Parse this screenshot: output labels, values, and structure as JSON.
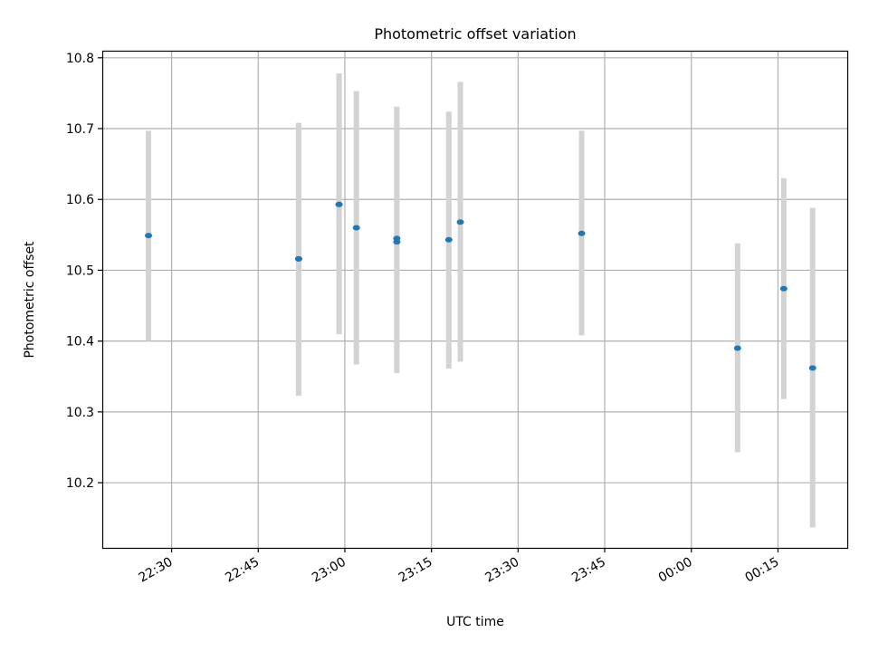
{
  "chart_data": {
    "type": "scatter",
    "title": "Photometric offset variation",
    "xlabel": "UTC time",
    "ylabel": "Photometric offset",
    "x_ticks": [
      "22:30",
      "22:45",
      "23:00",
      "23:15",
      "23:30",
      "23:45",
      "00:00",
      "00:15"
    ],
    "y_ticks": [
      "10.2",
      "10.3",
      "10.4",
      "10.5",
      "10.6",
      "10.7",
      "10.8"
    ],
    "ylim": [
      10.108,
      10.81
    ],
    "xlim_time": [
      "22:18",
      "00:27"
    ],
    "grid": true,
    "series": [
      {
        "points": [
          {
            "time": "22:26",
            "y": 10.549,
            "err_low": 10.4,
            "err_high": 10.697
          },
          {
            "time": "22:52",
            "y": 10.516,
            "err_low": 10.323,
            "err_high": 10.708
          },
          {
            "time": "22:52",
            "y": 10.516,
            "err_low": 10.323,
            "err_high": 10.708
          },
          {
            "time": "22:59",
            "y": 10.593,
            "err_low": 10.41,
            "err_high": 10.778
          },
          {
            "time": "22:59",
            "y": 10.593,
            "err_low": 10.41,
            "err_high": 10.778
          },
          {
            "time": "23:02",
            "y": 10.56,
            "err_low": 10.367,
            "err_high": 10.753
          },
          {
            "time": "23:09",
            "y": 10.545,
            "err_low": 10.36,
            "err_high": 10.731
          },
          {
            "time": "23:09",
            "y": 10.54,
            "err_low": 10.355,
            "err_high": 10.727
          },
          {
            "time": "23:18",
            "y": 10.543,
            "err_low": 10.361,
            "err_high": 10.724
          },
          {
            "time": "23:20",
            "y": 10.568,
            "err_low": 10.371,
            "err_high": 10.766
          },
          {
            "time": "23:41",
            "y": 10.552,
            "err_low": 10.408,
            "err_high": 10.697
          },
          {
            "time": "00:08",
            "y": 10.39,
            "err_low": 10.243,
            "err_high": 10.538
          },
          {
            "time": "00:16",
            "y": 10.474,
            "err_low": 10.318,
            "err_high": 10.63
          },
          {
            "time": "00:21",
            "y": 10.362,
            "err_low": 10.137,
            "err_high": 10.588
          }
        ]
      }
    ],
    "colors": {
      "marker": "#1f77b4",
      "errorbar": "#d3d3d3",
      "grid": "#b0b0b0",
      "axes": "#000000"
    }
  }
}
